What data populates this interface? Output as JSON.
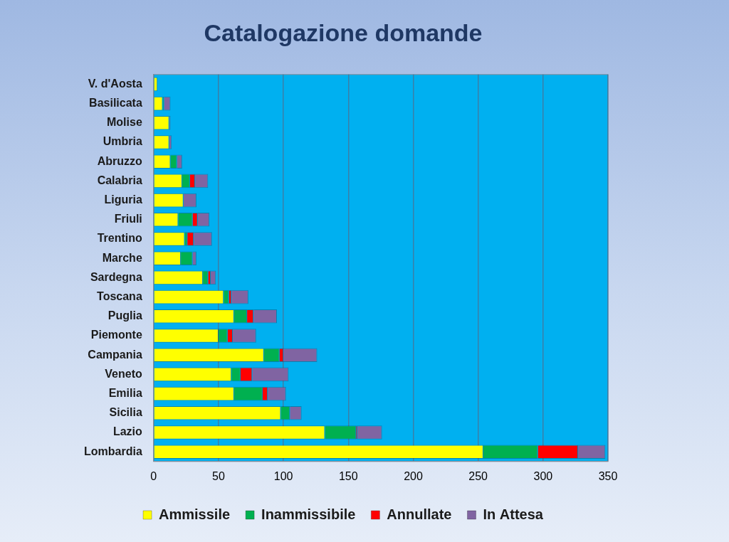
{
  "chart_data": {
    "type": "bar",
    "title": "Catalogazione domande",
    "orientation": "horizontal",
    "stacked": true,
    "legend": "bottom",
    "grid": true,
    "categories": [
      "V. d'Aosta",
      "Basilicata",
      "Molise",
      "Umbria",
      "Abruzzo",
      "Calabria",
      "Liguria",
      "Friuli",
      "Trentino",
      "Marche",
      "Sardegna",
      "Toscana",
      "Puglia",
      "Piemonte",
      "Campania",
      "Veneto",
      "Emilia",
      "Sicilia",
      "Lazio",
      "Lombardia"
    ],
    "series": [
      {
        "name": "Ammissile",
        "color": "#ffff00",
        "values": [
          3,
          7,
          12,
          12,
          13,
          22,
          23,
          19,
          24,
          21,
          38,
          54,
          62,
          50,
          85,
          60,
          62,
          98,
          132,
          254
        ]
      },
      {
        "name": "Inammissibile",
        "color": "#00b050",
        "values": [
          0,
          1,
          0,
          0,
          5,
          6,
          0,
          11,
          2,
          9,
          4,
          4,
          10,
          7,
          12,
          7,
          22,
          7,
          24,
          42
        ]
      },
      {
        "name": "Annullate",
        "color": "#ff0000",
        "values": [
          0,
          0,
          0,
          0,
          0,
          4,
          0,
          4,
          5,
          0,
          2,
          2,
          5,
          4,
          3,
          9,
          4,
          0,
          1,
          31
        ]
      },
      {
        "name": "In Attesa",
        "color": "#8064a2",
        "values": [
          0,
          5,
          1,
          2,
          4,
          10,
          10,
          9,
          14,
          3,
          4,
          13,
          18,
          18,
          26,
          28,
          14,
          9,
          19,
          21
        ]
      }
    ],
    "xlim": [
      0,
      350
    ],
    "xticks": [
      0,
      50,
      100,
      150,
      200,
      250,
      300,
      350
    ]
  }
}
